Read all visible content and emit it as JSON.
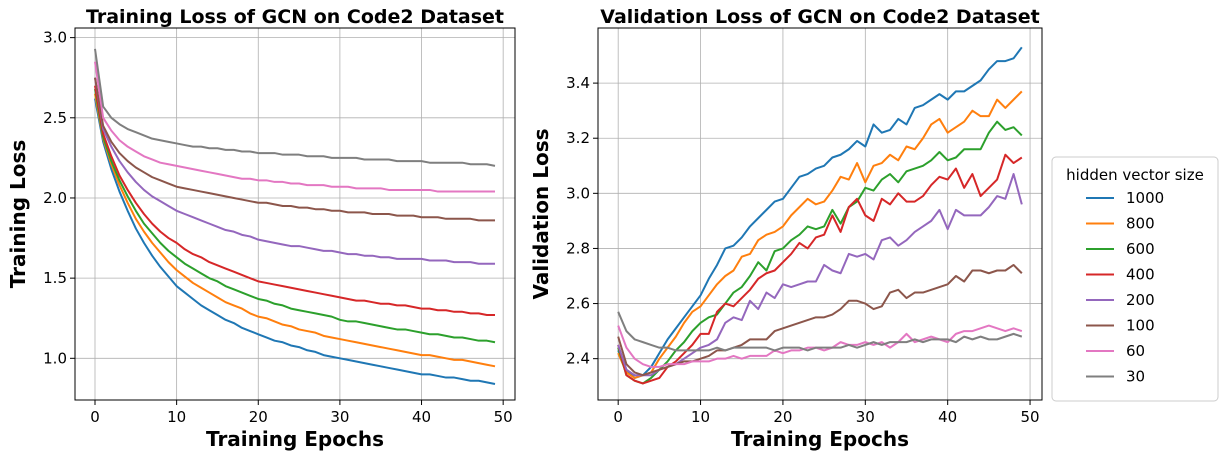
{
  "chart_data": [
    {
      "type": "line",
      "title": "Training Loss of GCN on Code2 Dataset",
      "xlabel": "Training Epochs",
      "ylabel": "Training Loss",
      "x": [
        0,
        1,
        2,
        3,
        4,
        5,
        6,
        7,
        8,
        9,
        10,
        11,
        12,
        13,
        14,
        15,
        16,
        17,
        18,
        19,
        20,
        21,
        22,
        23,
        24,
        25,
        26,
        27,
        28,
        29,
        30,
        31,
        32,
        33,
        34,
        35,
        36,
        37,
        38,
        39,
        40,
        41,
        42,
        43,
        44,
        45,
        46,
        47,
        48,
        49
      ],
      "xlim": [
        -2.45,
        51.45
      ],
      "xticks": [
        0,
        10,
        20,
        30,
        40,
        50
      ],
      "ylim": [
        0.74,
        3.06
      ],
      "yticks": [
        {
          "value": 1,
          "label": "1.0"
        },
        1.5,
        {
          "value": 2,
          "label": "2.0"
        },
        2.5,
        {
          "value": 3,
          "label": "3.0"
        }
      ],
      "grid": true,
      "series": [
        {
          "color": "#1f77b4",
          "values": [
            2.62,
            2.35,
            2.18,
            2.04,
            1.92,
            1.81,
            1.72,
            1.64,
            1.57,
            1.51,
            1.45,
            1.41,
            1.37,
            1.33,
            1.3,
            1.27,
            1.24,
            1.22,
            1.19,
            1.17,
            1.15,
            1.13,
            1.11,
            1.1,
            1.08,
            1.07,
            1.05,
            1.04,
            1.02,
            1.01,
            1.0,
            0.99,
            0.98,
            0.97,
            0.96,
            0.95,
            0.94,
            0.93,
            0.92,
            0.91,
            0.9,
            0.9,
            0.89,
            0.88,
            0.88,
            0.87,
            0.86,
            0.86,
            0.85,
            0.84
          ]
        },
        {
          "color": "#ff7f0e",
          "values": [
            2.65,
            2.37,
            2.21,
            2.08,
            1.97,
            1.87,
            1.79,
            1.72,
            1.66,
            1.6,
            1.55,
            1.51,
            1.47,
            1.44,
            1.41,
            1.38,
            1.35,
            1.33,
            1.31,
            1.28,
            1.26,
            1.25,
            1.23,
            1.21,
            1.2,
            1.18,
            1.17,
            1.16,
            1.14,
            1.13,
            1.12,
            1.11,
            1.1,
            1.09,
            1.08,
            1.07,
            1.06,
            1.05,
            1.04,
            1.03,
            1.02,
            1.02,
            1.01,
            1.0,
            0.99,
            0.99,
            0.98,
            0.97,
            0.96,
            0.95
          ]
        },
        {
          "color": "#2ca02c",
          "values": [
            2.68,
            2.38,
            2.23,
            2.11,
            2.01,
            1.92,
            1.84,
            1.78,
            1.72,
            1.67,
            1.63,
            1.59,
            1.56,
            1.53,
            1.5,
            1.48,
            1.45,
            1.43,
            1.41,
            1.39,
            1.37,
            1.36,
            1.34,
            1.33,
            1.31,
            1.3,
            1.29,
            1.28,
            1.27,
            1.26,
            1.24,
            1.23,
            1.23,
            1.22,
            1.21,
            1.2,
            1.19,
            1.18,
            1.18,
            1.17,
            1.16,
            1.15,
            1.15,
            1.14,
            1.13,
            1.13,
            1.12,
            1.11,
            1.11,
            1.1
          ]
        },
        {
          "color": "#d62728",
          "values": [
            2.7,
            2.4,
            2.26,
            2.14,
            2.05,
            1.97,
            1.9,
            1.84,
            1.79,
            1.75,
            1.72,
            1.68,
            1.65,
            1.63,
            1.6,
            1.58,
            1.56,
            1.54,
            1.52,
            1.5,
            1.48,
            1.47,
            1.46,
            1.45,
            1.44,
            1.43,
            1.42,
            1.41,
            1.4,
            1.39,
            1.38,
            1.37,
            1.36,
            1.36,
            1.35,
            1.34,
            1.34,
            1.33,
            1.33,
            1.32,
            1.31,
            1.31,
            1.3,
            1.3,
            1.29,
            1.29,
            1.28,
            1.28,
            1.27,
            1.27
          ]
        },
        {
          "color": "#9467bd",
          "values": [
            2.75,
            2.43,
            2.32,
            2.23,
            2.16,
            2.1,
            2.05,
            2.01,
            1.98,
            1.95,
            1.92,
            1.9,
            1.88,
            1.86,
            1.84,
            1.82,
            1.8,
            1.79,
            1.77,
            1.76,
            1.74,
            1.73,
            1.72,
            1.71,
            1.7,
            1.7,
            1.69,
            1.68,
            1.67,
            1.67,
            1.66,
            1.65,
            1.65,
            1.64,
            1.64,
            1.63,
            1.63,
            1.62,
            1.62,
            1.62,
            1.62,
            1.61,
            1.61,
            1.61,
            1.6,
            1.6,
            1.6,
            1.59,
            1.59,
            1.59
          ]
        },
        {
          "color": "#8c564b",
          "values": [
            2.75,
            2.45,
            2.35,
            2.28,
            2.23,
            2.19,
            2.16,
            2.13,
            2.11,
            2.09,
            2.07,
            2.06,
            2.05,
            2.04,
            2.03,
            2.02,
            2.01,
            2.0,
            1.99,
            1.98,
            1.97,
            1.97,
            1.96,
            1.95,
            1.95,
            1.94,
            1.94,
            1.93,
            1.93,
            1.92,
            1.92,
            1.91,
            1.91,
            1.91,
            1.9,
            1.9,
            1.9,
            1.89,
            1.89,
            1.89,
            1.88,
            1.88,
            1.88,
            1.87,
            1.87,
            1.87,
            1.87,
            1.86,
            1.86,
            1.86
          ]
        },
        {
          "color": "#e377c2",
          "values": [
            2.85,
            2.5,
            2.42,
            2.36,
            2.32,
            2.29,
            2.26,
            2.24,
            2.22,
            2.21,
            2.2,
            2.19,
            2.18,
            2.17,
            2.16,
            2.15,
            2.14,
            2.13,
            2.12,
            2.12,
            2.11,
            2.11,
            2.1,
            2.1,
            2.09,
            2.09,
            2.08,
            2.08,
            2.08,
            2.07,
            2.07,
            2.07,
            2.06,
            2.06,
            2.06,
            2.06,
            2.05,
            2.05,
            2.05,
            2.05,
            2.05,
            2.05,
            2.04,
            2.04,
            2.04,
            2.04,
            2.04,
            2.04,
            2.04,
            2.04
          ]
        },
        {
          "color": "#7f7f7f",
          "values": [
            2.93,
            2.57,
            2.5,
            2.46,
            2.43,
            2.41,
            2.39,
            2.37,
            2.36,
            2.35,
            2.34,
            2.33,
            2.32,
            2.32,
            2.31,
            2.31,
            2.3,
            2.3,
            2.29,
            2.29,
            2.28,
            2.28,
            2.28,
            2.27,
            2.27,
            2.27,
            2.26,
            2.26,
            2.26,
            2.25,
            2.25,
            2.25,
            2.25,
            2.24,
            2.24,
            2.24,
            2.24,
            2.23,
            2.23,
            2.23,
            2.23,
            2.22,
            2.22,
            2.22,
            2.22,
            2.22,
            2.21,
            2.21,
            2.21,
            2.2
          ]
        }
      ]
    },
    {
      "type": "line",
      "title": "Validation Loss of GCN on Code2 Dataset",
      "xlabel": "Training Epochs",
      "ylabel": "Validation Loss",
      "x": [
        0,
        1,
        2,
        3,
        4,
        5,
        6,
        7,
        8,
        9,
        10,
        11,
        12,
        13,
        14,
        15,
        16,
        17,
        18,
        19,
        20,
        21,
        22,
        23,
        24,
        25,
        26,
        27,
        28,
        29,
        30,
        31,
        32,
        33,
        34,
        35,
        36,
        37,
        38,
        39,
        40,
        41,
        42,
        43,
        44,
        45,
        46,
        47,
        48,
        49
      ],
      "xlim": [
        -2.45,
        51.45
      ],
      "xticks": [
        0,
        10,
        20,
        30,
        40,
        50
      ],
      "ylim": [
        2.25,
        3.6
      ],
      "yticks": [
        2.4,
        2.6,
        2.8,
        {
          "value": 3,
          "label": "3.0"
        },
        3.2,
        3.4
      ],
      "grid": true,
      "legend_title": "hidden vector size",
      "legend_position": "outside right",
      "series": [
        {
          "name": "1000",
          "color": "#1f77b4",
          "values": [
            2.43,
            2.36,
            2.33,
            2.34,
            2.37,
            2.42,
            2.47,
            2.51,
            2.55,
            2.59,
            2.63,
            2.69,
            2.74,
            2.8,
            2.81,
            2.84,
            2.88,
            2.91,
            2.94,
            2.97,
            2.98,
            3.02,
            3.06,
            3.07,
            3.09,
            3.1,
            3.13,
            3.14,
            3.16,
            3.19,
            3.17,
            3.25,
            3.22,
            3.23,
            3.27,
            3.25,
            3.31,
            3.32,
            3.34,
            3.36,
            3.34,
            3.37,
            3.37,
            3.39,
            3.41,
            3.45,
            3.48,
            3.48,
            3.49,
            3.53
          ]
        },
        {
          "name": "800",
          "color": "#ff7f0e",
          "values": [
            2.42,
            2.35,
            2.33,
            2.34,
            2.35,
            2.4,
            2.44,
            2.48,
            2.53,
            2.57,
            2.59,
            2.63,
            2.67,
            2.7,
            2.72,
            2.77,
            2.78,
            2.83,
            2.85,
            2.86,
            2.88,
            2.92,
            2.95,
            2.98,
            2.96,
            2.97,
            3.01,
            3.06,
            3.05,
            3.11,
            3.04,
            3.1,
            3.11,
            3.14,
            3.12,
            3.17,
            3.16,
            3.2,
            3.25,
            3.27,
            3.22,
            3.24,
            3.26,
            3.3,
            3.28,
            3.28,
            3.34,
            3.31,
            3.34,
            3.37
          ]
        },
        {
          "name": "600",
          "color": "#2ca02c",
          "values": [
            2.44,
            2.34,
            2.32,
            2.31,
            2.33,
            2.36,
            2.39,
            2.43,
            2.46,
            2.5,
            2.53,
            2.55,
            2.56,
            2.6,
            2.64,
            2.66,
            2.7,
            2.75,
            2.72,
            2.79,
            2.8,
            2.83,
            2.85,
            2.88,
            2.87,
            2.88,
            2.94,
            2.89,
            2.95,
            2.97,
            3.02,
            3.01,
            3.05,
            3.07,
            3.04,
            3.08,
            3.09,
            3.1,
            3.12,
            3.15,
            3.12,
            3.13,
            3.16,
            3.16,
            3.16,
            3.22,
            3.26,
            3.23,
            3.24,
            3.21
          ]
        },
        {
          "name": "400",
          "color": "#d62728",
          "values": [
            2.45,
            2.34,
            2.32,
            2.31,
            2.32,
            2.33,
            2.37,
            2.39,
            2.42,
            2.45,
            2.49,
            2.49,
            2.57,
            2.6,
            2.59,
            2.62,
            2.65,
            2.69,
            2.71,
            2.72,
            2.75,
            2.78,
            2.82,
            2.8,
            2.84,
            2.85,
            2.92,
            2.86,
            2.95,
            2.98,
            2.92,
            2.9,
            2.98,
            2.96,
            3.0,
            2.97,
            2.97,
            2.99,
            3.03,
            3.06,
            3.05,
            3.09,
            3.02,
            3.07,
            2.99,
            3.02,
            3.05,
            3.14,
            3.11,
            3.13
          ]
        },
        {
          "name": "200",
          "color": "#9467bd",
          "values": [
            2.45,
            2.36,
            2.34,
            2.34,
            2.34,
            2.36,
            2.37,
            2.38,
            2.4,
            2.42,
            2.44,
            2.45,
            2.47,
            2.53,
            2.55,
            2.54,
            2.61,
            2.58,
            2.64,
            2.62,
            2.67,
            2.66,
            2.67,
            2.68,
            2.68,
            2.74,
            2.72,
            2.71,
            2.78,
            2.77,
            2.78,
            2.76,
            2.83,
            2.84,
            2.81,
            2.83,
            2.86,
            2.88,
            2.9,
            2.94,
            2.87,
            2.94,
            2.92,
            2.92,
            2.92,
            2.95,
            2.99,
            2.98,
            3.07,
            2.96
          ]
        },
        {
          "name": "100",
          "color": "#8c564b",
          "values": [
            2.48,
            2.38,
            2.35,
            2.34,
            2.35,
            2.36,
            2.37,
            2.38,
            2.39,
            2.39,
            2.4,
            2.41,
            2.43,
            2.43,
            2.44,
            2.45,
            2.47,
            2.47,
            2.47,
            2.5,
            2.51,
            2.52,
            2.53,
            2.54,
            2.55,
            2.55,
            2.56,
            2.58,
            2.61,
            2.61,
            2.6,
            2.58,
            2.59,
            2.64,
            2.65,
            2.62,
            2.64,
            2.64,
            2.65,
            2.66,
            2.67,
            2.7,
            2.68,
            2.72,
            2.72,
            2.71,
            2.72,
            2.72,
            2.74,
            2.71
          ]
        },
        {
          "name": "60",
          "color": "#e377c2",
          "values": [
            2.52,
            2.44,
            2.4,
            2.38,
            2.37,
            2.37,
            2.38,
            2.38,
            2.38,
            2.39,
            2.39,
            2.39,
            2.4,
            2.4,
            2.41,
            2.4,
            2.41,
            2.41,
            2.41,
            2.43,
            2.42,
            2.43,
            2.43,
            2.44,
            2.44,
            2.43,
            2.44,
            2.46,
            2.45,
            2.45,
            2.46,
            2.45,
            2.46,
            2.44,
            2.46,
            2.49,
            2.46,
            2.47,
            2.48,
            2.47,
            2.46,
            2.49,
            2.5,
            2.5,
            2.51,
            2.52,
            2.51,
            2.5,
            2.51,
            2.5
          ]
        },
        {
          "name": "30",
          "color": "#7f7f7f",
          "values": [
            2.57,
            2.5,
            2.47,
            2.46,
            2.45,
            2.44,
            2.44,
            2.43,
            2.43,
            2.43,
            2.43,
            2.43,
            2.44,
            2.43,
            2.44,
            2.44,
            2.44,
            2.44,
            2.44,
            2.43,
            2.44,
            2.44,
            2.44,
            2.43,
            2.44,
            2.44,
            2.44,
            2.44,
            2.45,
            2.44,
            2.45,
            2.46,
            2.45,
            2.46,
            2.46,
            2.46,
            2.47,
            2.46,
            2.47,
            2.47,
            2.47,
            2.46,
            2.48,
            2.47,
            2.48,
            2.47,
            2.47,
            2.48,
            2.49,
            2.48
          ]
        }
      ]
    }
  ]
}
